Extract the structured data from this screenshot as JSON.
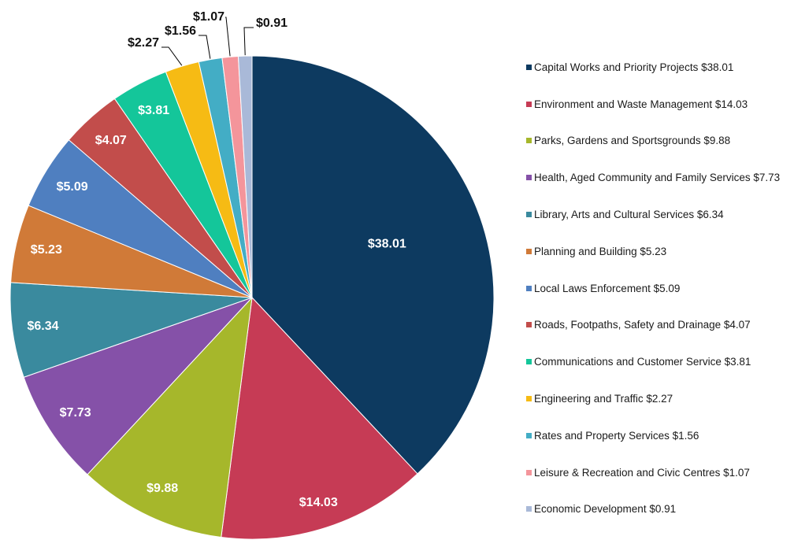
{
  "chart_data": {
    "type": "pie",
    "title": "",
    "start_angle_deg": 0,
    "direction": "clockwise",
    "legend_position": "right",
    "slices": [
      {
        "category": "Capital Works and Priority Projects",
        "value": 38.01,
        "label": "$38.01",
        "legend": "Capital Works and Priority Projects $38.01",
        "color": "#0d3a60",
        "label_color": "#ffffff"
      },
      {
        "category": "Environment and Waste Management",
        "value": 14.03,
        "label": "$14.03",
        "legend": "Environment and Waste Management $14.03",
        "color": "#c63b55",
        "label_color": "#ffffff"
      },
      {
        "category": "Parks, Gardens and Sportsgrounds",
        "value": 9.88,
        "label": "$9.88",
        "legend": "Parks, Gardens and Sportsgrounds $9.88",
        "color": "#a6b72b",
        "label_color": "#ffffff"
      },
      {
        "category": "Health, Aged Community and Family Services",
        "value": 7.73,
        "label": "$7.73",
        "legend": "Health, Aged Community and Family Services $7.73",
        "color": "#8551a8",
        "label_color": "#ffffff"
      },
      {
        "category": "Library, Arts and Cultural Services",
        "value": 6.34,
        "label": "$6.34",
        "legend": "Library, Arts and Cultural Services $6.34",
        "color": "#3a8a9e",
        "label_color": "#ffffff"
      },
      {
        "category": "Planning and Building",
        "value": 5.23,
        "label": "$5.23",
        "legend": "Planning and Building $5.23",
        "color": "#d07a38",
        "label_color": "#ffffff"
      },
      {
        "category": "Local Laws Enforcement",
        "value": 5.09,
        "label": "$5.09",
        "legend": "Local Laws Enforcement $5.09",
        "color": "#4f7fc0",
        "label_color": "#ffffff"
      },
      {
        "category": "Roads, Footpaths, Safety and Drainage",
        "value": 4.07,
        "label": "$4.07",
        "legend": "Roads, Footpaths, Safety and Drainage $4.07",
        "color": "#c24d4b",
        "label_color": "#ffffff"
      },
      {
        "category": "Communications and Customer Service",
        "value": 3.81,
        "label": "$3.81",
        "legend": "Communications and Customer Service $3.81",
        "color": "#14c69a",
        "label_color": "#ffffff"
      },
      {
        "category": "Engineering and Traffic",
        "value": 2.27,
        "label": "$2.27",
        "legend": "Engineering and Traffic $2.27",
        "color": "#f6bb14",
        "label_color": "#111111"
      },
      {
        "category": "Rates and Property Services",
        "value": 1.56,
        "label": "$1.56",
        "legend": "Rates and Property Services $1.56",
        "color": "#43adc5",
        "label_color": "#111111"
      },
      {
        "category": "Leisure & Recreation and Civic Centres",
        "value": 1.07,
        "label": "$1.07",
        "legend": "Leisure & Recreation and Civic Centres $1.07",
        "color": "#f4959b",
        "label_color": "#111111"
      },
      {
        "category": "Economic Development",
        "value": 0.91,
        "label": "$0.91",
        "legend": "Economic Development $0.91",
        "color": "#a9b9d8",
        "label_color": "#111111"
      }
    ]
  }
}
